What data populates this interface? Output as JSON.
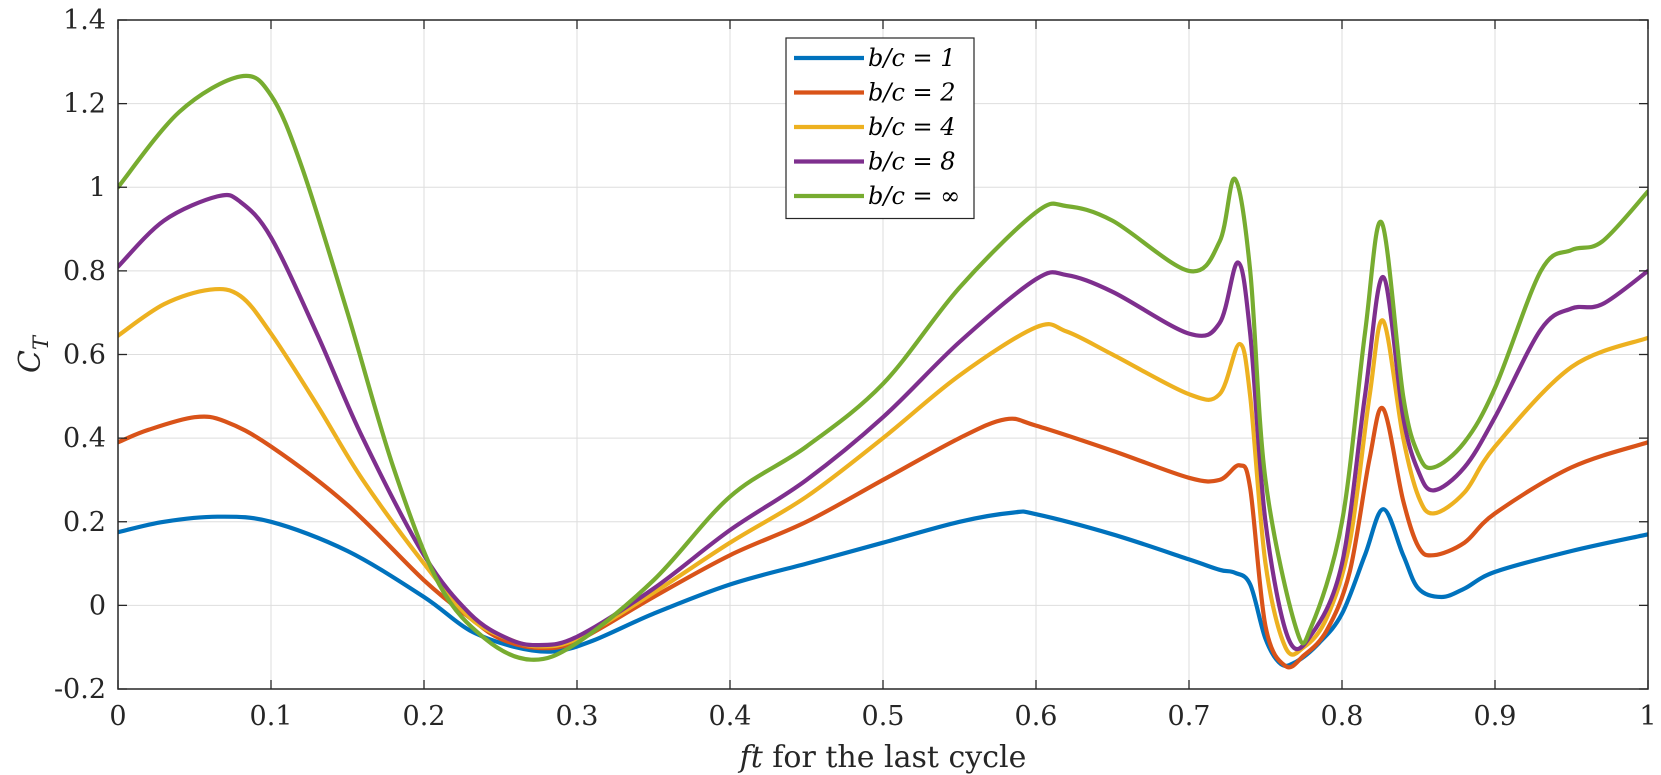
{
  "chart_data": {
    "type": "line",
    "title": "",
    "xlabel_italic": "ft",
    "xlabel_rest": " for the last cycle",
    "ylabel_main": "C",
    "ylabel_sub": "T",
    "xlim": [
      0,
      1
    ],
    "ylim": [
      -0.2,
      1.4
    ],
    "grid": true,
    "legend_position": "top-center",
    "x_ticks": [
      {
        "value": 0,
        "label": "0"
      },
      {
        "value": 0.1,
        "label": "0.1"
      },
      {
        "value": 0.2,
        "label": "0.2"
      },
      {
        "value": 0.3,
        "label": "0.3"
      },
      {
        "value": 0.4,
        "label": "0.4"
      },
      {
        "value": 0.5,
        "label": "0.5"
      },
      {
        "value": 0.6,
        "label": "0.6"
      },
      {
        "value": 0.7,
        "label": "0.7"
      },
      {
        "value": 0.8,
        "label": "0.8"
      },
      {
        "value": 0.9,
        "label": "0.9"
      },
      {
        "value": 1,
        "label": "1"
      }
    ],
    "y_ticks": [
      {
        "value": -0.2,
        "label": "-0.2"
      },
      {
        "value": 0,
        "label": "0"
      },
      {
        "value": 0.2,
        "label": "0.2"
      },
      {
        "value": 0.4,
        "label": "0.4"
      },
      {
        "value": 0.6,
        "label": "0.6"
      },
      {
        "value": 0.8,
        "label": "0.8"
      },
      {
        "value": 1,
        "label": "1"
      },
      {
        "value": 1.2,
        "label": "1.2"
      },
      {
        "value": 1.4,
        "label": "1.4"
      }
    ],
    "series": [
      {
        "name": "b/c = 1",
        "color": "#0072BD",
        "points": [
          [
            0,
            0.175
          ],
          [
            0.03,
            0.2
          ],
          [
            0.065,
            0.212
          ],
          [
            0.1,
            0.2
          ],
          [
            0.15,
            0.13
          ],
          [
            0.2,
            0.02
          ],
          [
            0.23,
            -0.06
          ],
          [
            0.26,
            -0.1
          ],
          [
            0.285,
            -0.11
          ],
          [
            0.31,
            -0.085
          ],
          [
            0.35,
            -0.02
          ],
          [
            0.4,
            0.05
          ],
          [
            0.45,
            0.1
          ],
          [
            0.5,
            0.15
          ],
          [
            0.55,
            0.2
          ],
          [
            0.585,
            0.222
          ],
          [
            0.6,
            0.218
          ],
          [
            0.65,
            0.17
          ],
          [
            0.7,
            0.11
          ],
          [
            0.72,
            0.085
          ],
          [
            0.73,
            0.078
          ],
          [
            0.74,
            0.05
          ],
          [
            0.75,
            -0.08
          ],
          [
            0.76,
            -0.14
          ],
          [
            0.77,
            -0.135
          ],
          [
            0.785,
            -0.09
          ],
          [
            0.8,
            -0.02
          ],
          [
            0.815,
            0.12
          ],
          [
            0.827,
            0.23
          ],
          [
            0.84,
            0.12
          ],
          [
            0.85,
            0.04
          ],
          [
            0.865,
            0.02
          ],
          [
            0.88,
            0.04
          ],
          [
            0.9,
            0.08
          ],
          [
            0.95,
            0.13
          ],
          [
            1,
            0.17
          ]
        ]
      },
      {
        "name": "b/c = 2",
        "color": "#D95319",
        "points": [
          [
            0,
            0.39
          ],
          [
            0.02,
            0.42
          ],
          [
            0.05,
            0.45
          ],
          [
            0.07,
            0.44
          ],
          [
            0.1,
            0.38
          ],
          [
            0.15,
            0.24
          ],
          [
            0.2,
            0.06
          ],
          [
            0.23,
            -0.03
          ],
          [
            0.25,
            -0.08
          ],
          [
            0.275,
            -0.102
          ],
          [
            0.3,
            -0.085
          ],
          [
            0.35,
            0.02
          ],
          [
            0.4,
            0.12
          ],
          [
            0.45,
            0.2
          ],
          [
            0.5,
            0.3
          ],
          [
            0.55,
            0.4
          ],
          [
            0.58,
            0.445
          ],
          [
            0.6,
            0.43
          ],
          [
            0.65,
            0.37
          ],
          [
            0.7,
            0.305
          ],
          [
            0.72,
            0.3
          ],
          [
            0.733,
            0.335
          ],
          [
            0.74,
            0.28
          ],
          [
            0.75,
            -0.05
          ],
          [
            0.763,
            -0.145
          ],
          [
            0.775,
            -0.12
          ],
          [
            0.79,
            -0.06
          ],
          [
            0.805,
            0.08
          ],
          [
            0.818,
            0.35
          ],
          [
            0.827,
            0.47
          ],
          [
            0.84,
            0.25
          ],
          [
            0.85,
            0.14
          ],
          [
            0.86,
            0.12
          ],
          [
            0.88,
            0.15
          ],
          [
            0.9,
            0.22
          ],
          [
            0.95,
            0.33
          ],
          [
            1,
            0.39
          ]
        ]
      },
      {
        "name": "b/c = 4",
        "color": "#EDB120",
        "points": [
          [
            0,
            0.645
          ],
          [
            0.03,
            0.72
          ],
          [
            0.06,
            0.755
          ],
          [
            0.08,
            0.74
          ],
          [
            0.1,
            0.65
          ],
          [
            0.13,
            0.48
          ],
          [
            0.16,
            0.3
          ],
          [
            0.2,
            0.1
          ],
          [
            0.23,
            -0.03
          ],
          [
            0.255,
            -0.08
          ],
          [
            0.275,
            -0.098
          ],
          [
            0.3,
            -0.08
          ],
          [
            0.35,
            0.03
          ],
          [
            0.4,
            0.15
          ],
          [
            0.45,
            0.26
          ],
          [
            0.5,
            0.4
          ],
          [
            0.55,
            0.55
          ],
          [
            0.6,
            0.665
          ],
          [
            0.62,
            0.655
          ],
          [
            0.65,
            0.6
          ],
          [
            0.7,
            0.505
          ],
          [
            0.72,
            0.505
          ],
          [
            0.733,
            0.625
          ],
          [
            0.74,
            0.5
          ],
          [
            0.75,
            0.1
          ],
          [
            0.763,
            -0.1
          ],
          [
            0.775,
            -0.1
          ],
          [
            0.79,
            -0.03
          ],
          [
            0.805,
            0.15
          ],
          [
            0.818,
            0.5
          ],
          [
            0.827,
            0.68
          ],
          [
            0.84,
            0.4
          ],
          [
            0.85,
            0.26
          ],
          [
            0.86,
            0.22
          ],
          [
            0.88,
            0.27
          ],
          [
            0.9,
            0.38
          ],
          [
            0.95,
            0.57
          ],
          [
            1,
            0.64
          ]
        ]
      },
      {
        "name": "b/c = 8",
        "color": "#7E2F8E",
        "points": [
          [
            0,
            0.81
          ],
          [
            0.03,
            0.92
          ],
          [
            0.065,
            0.978
          ],
          [
            0.08,
            0.965
          ],
          [
            0.1,
            0.88
          ],
          [
            0.13,
            0.65
          ],
          [
            0.16,
            0.4
          ],
          [
            0.2,
            0.12
          ],
          [
            0.23,
            -0.02
          ],
          [
            0.255,
            -0.08
          ],
          [
            0.275,
            -0.095
          ],
          [
            0.3,
            -0.075
          ],
          [
            0.35,
            0.04
          ],
          [
            0.4,
            0.18
          ],
          [
            0.45,
            0.3
          ],
          [
            0.5,
            0.45
          ],
          [
            0.55,
            0.63
          ],
          [
            0.6,
            0.78
          ],
          [
            0.62,
            0.79
          ],
          [
            0.65,
            0.75
          ],
          [
            0.7,
            0.65
          ],
          [
            0.72,
            0.675
          ],
          [
            0.732,
            0.82
          ],
          [
            0.74,
            0.65
          ],
          [
            0.75,
            0.2
          ],
          [
            0.765,
            -0.08
          ],
          [
            0.78,
            -0.07
          ],
          [
            0.8,
            0.1
          ],
          [
            0.815,
            0.5
          ],
          [
            0.827,
            0.785
          ],
          [
            0.84,
            0.45
          ],
          [
            0.85,
            0.32
          ],
          [
            0.86,
            0.275
          ],
          [
            0.88,
            0.33
          ],
          [
            0.9,
            0.45
          ],
          [
            0.93,
            0.66
          ],
          [
            0.95,
            0.71
          ],
          [
            0.97,
            0.72
          ],
          [
            1,
            0.8
          ]
        ]
      },
      {
        "name": "b/c = ∞",
        "color": "#77AC30",
        "points": [
          [
            0,
            1
          ],
          [
            0.04,
            1.18
          ],
          [
            0.08,
            1.265
          ],
          [
            0.1,
            1.22
          ],
          [
            0.12,
            1.05
          ],
          [
            0.15,
            0.7
          ],
          [
            0.18,
            0.33
          ],
          [
            0.21,
            0.05
          ],
          [
            0.24,
            -0.08
          ],
          [
            0.27,
            -0.13
          ],
          [
            0.3,
            -0.09
          ],
          [
            0.35,
            0.06
          ],
          [
            0.4,
            0.26
          ],
          [
            0.45,
            0.38
          ],
          [
            0.5,
            0.53
          ],
          [
            0.55,
            0.76
          ],
          [
            0.6,
            0.94
          ],
          [
            0.62,
            0.955
          ],
          [
            0.65,
            0.92
          ],
          [
            0.7,
            0.8
          ],
          [
            0.72,
            0.87
          ],
          [
            0.73,
            1.02
          ],
          [
            0.74,
            0.8
          ],
          [
            0.75,
            0.3
          ],
          [
            0.77,
            -0.055
          ],
          [
            0.78,
            -0.05
          ],
          [
            0.8,
            0.2
          ],
          [
            0.815,
            0.65
          ],
          [
            0.826,
            0.915
          ],
          [
            0.84,
            0.5
          ],
          [
            0.85,
            0.36
          ],
          [
            0.86,
            0.33
          ],
          [
            0.88,
            0.39
          ],
          [
            0.9,
            0.52
          ],
          [
            0.93,
            0.8
          ],
          [
            0.95,
            0.85
          ],
          [
            0.97,
            0.87
          ],
          [
            1,
            0.99
          ]
        ]
      }
    ]
  }
}
